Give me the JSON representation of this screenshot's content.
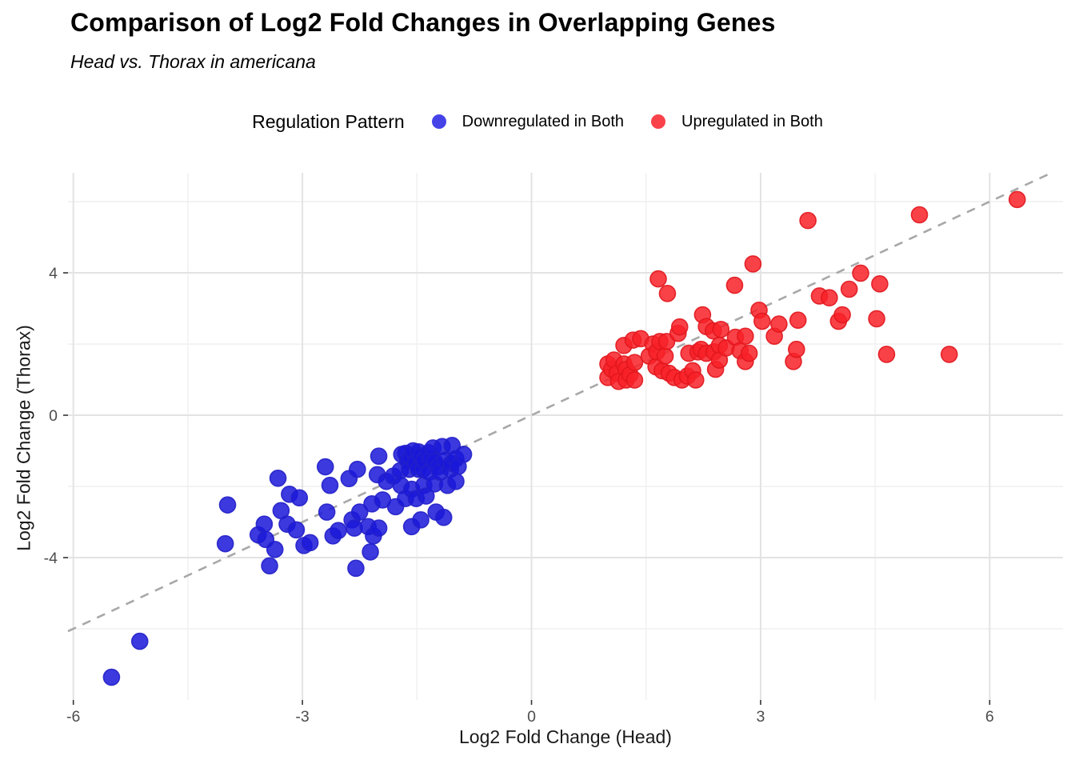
{
  "title": "Comparison of Log2 Fold Changes in Overlapping Genes",
  "subtitle": "Head vs. Thorax in americana",
  "legend": {
    "title": "Regulation Pattern",
    "items": [
      {
        "label": "Downregulated in Both",
        "color": "#4543E8"
      },
      {
        "label": "Upregulated in Both",
        "color": "#F9424A"
      }
    ]
  },
  "chart_data": {
    "type": "scatter",
    "title": "Comparison of Log2 Fold Changes in Overlapping Genes",
    "subtitle": "Head vs. Thorax in americana",
    "xlabel": "Log2 Fold Change (Head)",
    "ylabel": "Log2 Fold Change (Thorax)",
    "xlim": [
      -6.07,
      6.96
    ],
    "ylim": [
      -8.0,
      6.81
    ],
    "x_ticks": [
      {
        "value": -6,
        "label": "-6"
      },
      {
        "value": -3,
        "label": "-3"
      },
      {
        "value": 0,
        "label": "0"
      },
      {
        "value": 3,
        "label": "3"
      },
      {
        "value": 6,
        "label": "6"
      }
    ],
    "y_ticks": [
      {
        "value": -4,
        "label": "-4"
      },
      {
        "value": 0,
        "label": "0"
      },
      {
        "value": 4,
        "label": "4"
      }
    ],
    "x_minor": [
      -4.5,
      -1.5,
      1.5,
      4.5
    ],
    "y_minor": [
      -6,
      -2,
      2,
      6
    ],
    "grid": true,
    "legend_position": "top",
    "identity_line": {
      "equation": "y = x",
      "style": "dashed",
      "color": "#A8A8A8"
    },
    "point_style": {
      "radius": 10,
      "fill_opacity": 0.85,
      "stroke_width": 1.6
    },
    "series": [
      {
        "name": "Downregulated in Both",
        "fill": "#1A18D9",
        "stroke": "#2320C8",
        "points": [
          [
            -5.5,
            -7.36
          ],
          [
            -5.13,
            -6.35
          ],
          [
            -4.01,
            -3.61
          ],
          [
            -3.98,
            -2.52
          ],
          [
            -3.58,
            -3.36
          ],
          [
            -3.5,
            -3.06
          ],
          [
            -3.48,
            -3.49
          ],
          [
            -3.43,
            -4.23
          ],
          [
            -3.36,
            -3.77
          ],
          [
            -3.32,
            -1.77
          ],
          [
            -3.28,
            -2.68
          ],
          [
            -3.2,
            -3.06
          ],
          [
            -3.17,
            -2.22
          ],
          [
            -3.08,
            -3.22
          ],
          [
            -3.04,
            -2.32
          ],
          [
            -2.98,
            -3.66
          ],
          [
            -2.9,
            -3.58
          ],
          [
            -2.7,
            -1.45
          ],
          [
            -2.68,
            -2.72
          ],
          [
            -2.64,
            -1.97
          ],
          [
            -2.6,
            -3.39
          ],
          [
            -2.53,
            -3.24
          ],
          [
            -2.39,
            -1.78
          ],
          [
            -2.35,
            -2.94
          ],
          [
            -2.32,
            -3.17
          ],
          [
            -2.3,
            -4.3
          ],
          [
            -2.28,
            -1.52
          ],
          [
            -2.25,
            -2.72
          ],
          [
            -2.14,
            -3.13
          ],
          [
            -2.11,
            -3.84
          ],
          [
            -2.09,
            -2.49
          ],
          [
            -2.07,
            -3.39
          ],
          [
            -2.02,
            -1.67
          ],
          [
            -2.0,
            -1.15
          ],
          [
            -2.0,
            -3.17
          ],
          [
            -1.95,
            -2.38
          ],
          [
            -1.9,
            -1.86
          ],
          [
            -1.81,
            -1.71
          ],
          [
            -1.78,
            -2.57
          ],
          [
            -1.72,
            -1.56
          ],
          [
            -1.71,
            -1.97
          ],
          [
            -1.7,
            -1.1
          ],
          [
            -1.65,
            -1.07
          ],
          [
            -1.65,
            -2.34
          ],
          [
            -1.62,
            -1.28
          ],
          [
            -1.6,
            -1.52
          ],
          [
            -1.58,
            -1.18
          ],
          [
            -1.57,
            -2.08
          ],
          [
            -1.57,
            -3.13
          ],
          [
            -1.55,
            -1.0
          ],
          [
            -1.52,
            -1.35
          ],
          [
            -1.51,
            -2.34
          ],
          [
            -1.48,
            -1.03
          ],
          [
            -1.48,
            -1.52
          ],
          [
            -1.45,
            -1.15
          ],
          [
            -1.45,
            -2.94
          ],
          [
            -1.42,
            -1.52
          ],
          [
            -1.41,
            -1.26
          ],
          [
            -1.41,
            -1.97
          ],
          [
            -1.38,
            -2.27
          ],
          [
            -1.35,
            -1.05
          ],
          [
            -1.34,
            -1.6
          ],
          [
            -1.32,
            -1.22
          ],
          [
            -1.29,
            -0.92
          ],
          [
            -1.27,
            -1.3
          ],
          [
            -1.27,
            -1.93
          ],
          [
            -1.25,
            -2.72
          ],
          [
            -1.22,
            -1.45
          ],
          [
            -1.2,
            -1.6
          ],
          [
            -1.17,
            -0.88
          ],
          [
            -1.15,
            -2.87
          ],
          [
            -1.13,
            -1.26
          ],
          [
            -1.1,
            -1.97
          ],
          [
            -1.06,
            -1.52
          ],
          [
            -1.05,
            -1.35
          ],
          [
            -1.04,
            -0.85
          ],
          [
            -0.99,
            -1.22
          ],
          [
            -0.99,
            -1.86
          ],
          [
            -0.96,
            -1.44
          ],
          [
            -0.89,
            -1.1
          ]
        ]
      },
      {
        "name": "Upregulated in Both",
        "fill": "#F82128",
        "stroke": "#E0161D",
        "points": [
          [
            1.0,
            1.44
          ],
          [
            1.0,
            1.06
          ],
          [
            1.05,
            1.29
          ],
          [
            1.08,
            1.55
          ],
          [
            1.12,
            1.18
          ],
          [
            1.14,
            0.95
          ],
          [
            1.21,
            1.96
          ],
          [
            1.21,
            1.44
          ],
          [
            1.24,
            1.29
          ],
          [
            1.24,
            0.99
          ],
          [
            1.29,
            1.14
          ],
          [
            1.33,
            2.11
          ],
          [
            1.35,
            1.48
          ],
          [
            1.35,
            0.99
          ],
          [
            1.43,
            2.15
          ],
          [
            1.54,
            1.66
          ],
          [
            1.59,
            2.0
          ],
          [
            1.63,
            1.36
          ],
          [
            1.64,
            1.78
          ],
          [
            1.66,
            3.83
          ],
          [
            1.68,
            2.07
          ],
          [
            1.71,
            1.25
          ],
          [
            1.75,
            1.66
          ],
          [
            1.77,
            2.07
          ],
          [
            1.78,
            3.42
          ],
          [
            1.8,
            1.18
          ],
          [
            1.87,
            1.06
          ],
          [
            1.92,
            2.3
          ],
          [
            1.94,
            2.48
          ],
          [
            1.97,
            0.99
          ],
          [
            2.04,
            1.1
          ],
          [
            2.06,
            1.74
          ],
          [
            2.11,
            1.25
          ],
          [
            2.15,
            0.99
          ],
          [
            2.18,
            1.78
          ],
          [
            2.22,
            1.85
          ],
          [
            2.24,
            2.82
          ],
          [
            2.29,
            2.49
          ],
          [
            2.29,
            1.74
          ],
          [
            2.38,
            2.37
          ],
          [
            2.39,
            1.78
          ],
          [
            2.41,
            1.29
          ],
          [
            2.46,
            1.96
          ],
          [
            2.46,
            1.55
          ],
          [
            2.48,
            2.41
          ],
          [
            2.55,
            1.89
          ],
          [
            2.66,
            3.65
          ],
          [
            2.67,
            2.19
          ],
          [
            2.73,
            1.81
          ],
          [
            2.8,
            2.22
          ],
          [
            2.8,
            1.51
          ],
          [
            2.85,
            1.74
          ],
          [
            2.9,
            4.25
          ],
          [
            2.98,
            2.95
          ],
          [
            3.02,
            2.64
          ],
          [
            3.18,
            2.22
          ],
          [
            3.24,
            2.56
          ],
          [
            3.43,
            1.51
          ],
          [
            3.47,
            1.85
          ],
          [
            3.49,
            2.67
          ],
          [
            3.62,
            5.47
          ],
          [
            3.77,
            3.35
          ],
          [
            3.9,
            3.3
          ],
          [
            4.02,
            2.64
          ],
          [
            4.07,
            2.82
          ],
          [
            4.16,
            3.54
          ],
          [
            4.31,
            3.99
          ],
          [
            4.52,
            2.71
          ],
          [
            4.56,
            3.69
          ],
          [
            4.65,
            1.71
          ],
          [
            5.08,
            5.63
          ],
          [
            5.47,
            1.71
          ],
          [
            6.36,
            6.06
          ]
        ]
      }
    ]
  }
}
